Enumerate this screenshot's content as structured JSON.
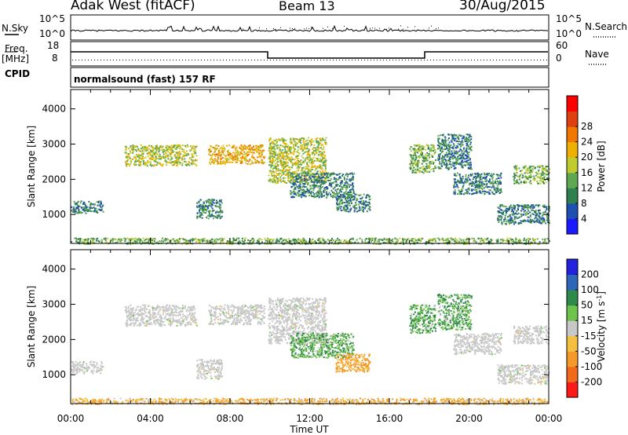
{
  "header": {
    "station": "Adak West (fitACF)",
    "beam": "Beam 13",
    "date": "30/Aug/2015"
  },
  "panels": {
    "nsky_label": "N.Sky",
    "nsky_ticks": [
      "10^5",
      "10^0"
    ],
    "nsearch_label": "N.Search",
    "nsearch_ticks": [
      "10^5",
      "10^0"
    ],
    "freq_label_line1": "Freq.",
    "freq_label_line2": "[MHz]",
    "freq_ticks": [
      "18",
      "8"
    ],
    "nave_label": "Nave",
    "nave_ticks": [
      "60",
      "0"
    ],
    "cpid_label": "CPID",
    "cpid_text": "normalsound (fast) 157 RF"
  },
  "colors": {
    "power": [
      "#1a1aff",
      "#1f4fb0",
      "#2f7f4f",
      "#5fa852",
      "#bfcc30",
      "#f0b000",
      "#f07800",
      "#e04010",
      "#ff0000"
    ],
    "velocity": [
      "#2222dd",
      "#2e66b8",
      "#2e8a4a",
      "#6ec34a",
      "#c8c8c8",
      "#f5c040",
      "#f59a2a",
      "#f06a1a",
      "#ff1a1a"
    ]
  },
  "chart_data": [
    {
      "type": "heatmap",
      "name": "Power",
      "ylabel": "Slant Range [km]",
      "colorbar_label": "Power [dB]",
      "colorbar_ticks": [
        "4",
        "8",
        "12",
        "16",
        "20",
        "24",
        "28"
      ],
      "yticks": [
        "1000",
        "2000",
        "3000",
        "4000"
      ],
      "ylim": [
        180,
        4550
      ],
      "xlim": [
        0,
        24
      ],
      "regions": [
        {
          "t0": 2.7,
          "t1": 6.3,
          "r0": 2400,
          "r1": 3000,
          "level": 16
        },
        {
          "t0": 6.9,
          "t1": 9.7,
          "r0": 2450,
          "r1": 3000,
          "level": 20
        },
        {
          "t0": 9.9,
          "t1": 12.8,
          "r0": 1900,
          "r1": 3200,
          "level": 16
        },
        {
          "t0": 11.0,
          "t1": 14.2,
          "r0": 1500,
          "r1": 2200,
          "level": 8
        },
        {
          "t0": 13.3,
          "t1": 15.0,
          "r0": 1100,
          "r1": 1600,
          "level": 8
        },
        {
          "t0": 6.3,
          "t1": 7.6,
          "r0": 900,
          "r1": 1450,
          "level": 8
        },
        {
          "t0": 0.0,
          "t1": 1.6,
          "r0": 1050,
          "r1": 1400,
          "level": 8
        },
        {
          "t0": 17.0,
          "t1": 18.3,
          "r0": 2200,
          "r1": 3000,
          "level": 12
        },
        {
          "t0": 18.4,
          "t1": 20.1,
          "r0": 2300,
          "r1": 3300,
          "level": 8
        },
        {
          "t0": 19.2,
          "t1": 21.6,
          "r0": 1600,
          "r1": 2200,
          "level": 8
        },
        {
          "t0": 22.2,
          "t1": 24.0,
          "r0": 1900,
          "r1": 2400,
          "level": 12
        },
        {
          "t0": 21.4,
          "t1": 24.0,
          "r0": 750,
          "r1": 1300,
          "level": 8
        },
        {
          "t0": 0.0,
          "t1": 24.0,
          "r0": 180,
          "r1": 350,
          "level": 12
        }
      ]
    },
    {
      "type": "heatmap",
      "name": "Velocity",
      "ylabel": "Slant Range [km]",
      "xlabel": "Time UT",
      "colorbar_label": "Velocity [m s^-1]",
      "colorbar_ticks": [
        "200",
        "100",
        "50",
        "15",
        "-15",
        "-50",
        "-100",
        "-200"
      ],
      "yticks": [
        "1000",
        "2000",
        "3000",
        "4000"
      ],
      "xticks": [
        "00:00",
        "04:00",
        "08:00",
        "12:00",
        "16:00",
        "20:00",
        "00:00"
      ],
      "ylim": [
        180,
        4550
      ],
      "xlim": [
        0,
        24
      ],
      "regions": [
        {
          "t0": 2.7,
          "t1": 6.3,
          "r0": 2400,
          "r1": 3000,
          "vel": 0
        },
        {
          "t0": 6.9,
          "t1": 9.7,
          "r0": 2450,
          "r1": 3000,
          "vel": 0
        },
        {
          "t0": 9.9,
          "t1": 12.8,
          "r0": 1900,
          "r1": 3200,
          "vel": 0
        },
        {
          "t0": 11.0,
          "t1": 14.2,
          "r0": 1500,
          "r1": 2200,
          "vel": 30
        },
        {
          "t0": 13.3,
          "t1": 15.0,
          "r0": 1100,
          "r1": 1600,
          "vel": -40
        },
        {
          "t0": 6.3,
          "t1": 7.6,
          "r0": 900,
          "r1": 1450,
          "vel": 0
        },
        {
          "t0": 0.0,
          "t1": 1.6,
          "r0": 1050,
          "r1": 1400,
          "vel": 0
        },
        {
          "t0": 17.0,
          "t1": 18.3,
          "r0": 2200,
          "r1": 3000,
          "vel": 30
        },
        {
          "t0": 18.4,
          "t1": 20.1,
          "r0": 2300,
          "r1": 3300,
          "vel": 30
        },
        {
          "t0": 19.2,
          "t1": 21.6,
          "r0": 1600,
          "r1": 2200,
          "vel": 0
        },
        {
          "t0": 22.2,
          "t1": 24.0,
          "r0": 1900,
          "r1": 2400,
          "vel": 0
        },
        {
          "t0": 21.4,
          "t1": 24.0,
          "r0": 750,
          "r1": 1300,
          "vel": 0
        },
        {
          "t0": 0.0,
          "t1": 24.0,
          "r0": 180,
          "r1": 350,
          "vel": -30
        }
      ]
    }
  ]
}
